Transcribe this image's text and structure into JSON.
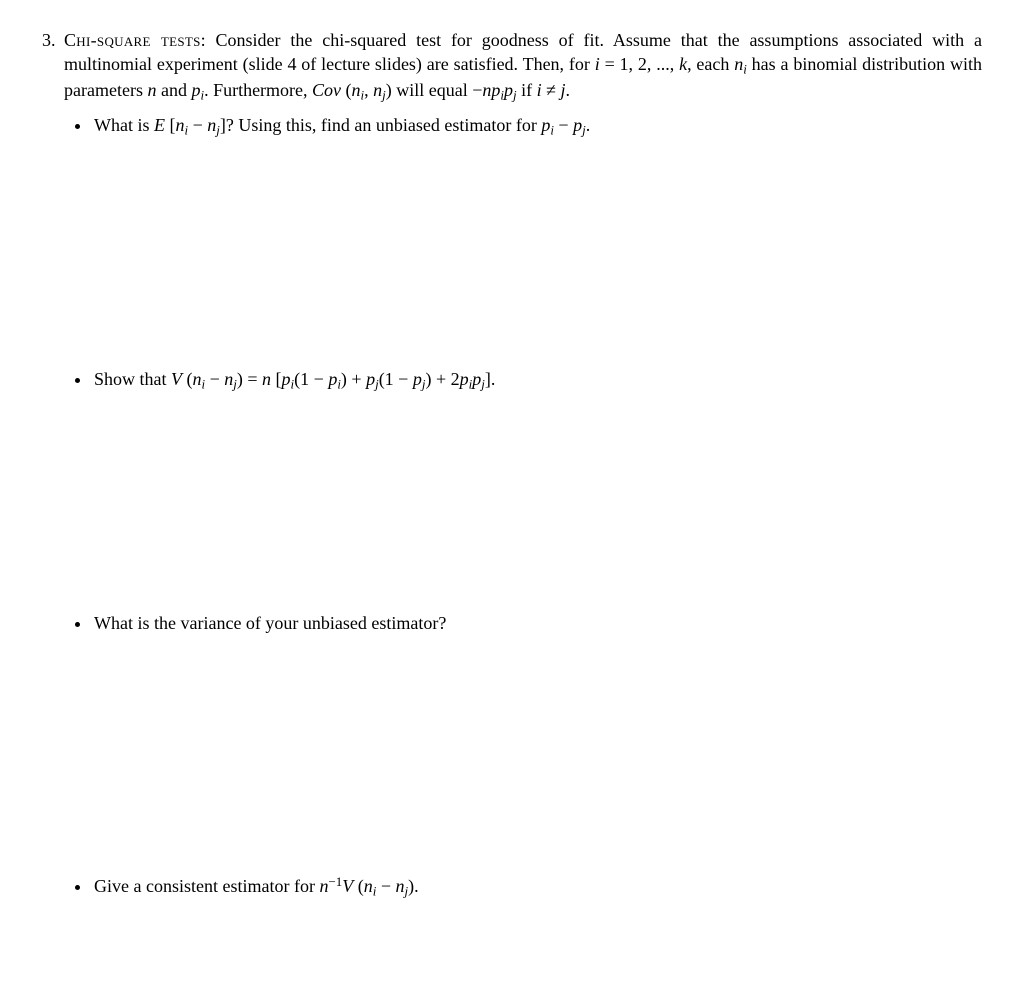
{
  "page": {
    "background_color": "#ffffff",
    "text_color": "#000000",
    "font_family": "Times New Roman",
    "base_fontsize_pt": 13
  },
  "problem": {
    "number": "3.",
    "title_smallcaps": "Chi-square tests",
    "title_suffix": ": ",
    "intro_html": "Consider the chi-squared test for goodness of fit. Assume that the assumptions associated with a multinomial experiment (slide 4 of lecture slides) are satisfied. Then, for <span class='math'>i</span> = 1, 2, ..., <span class='math'>k</span>, each <span class='math'>n<span class='sub'>i</span></span> has a binomial distribution with parameters <span class='math'>n</span> and <span class='math'>p<span class='sub'>i</span></span>. Furthermore, <span class='math'>Cov</span> (<span class='math'>n<span class='sub'>i</span></span>, <span class='math'>n<span class='sub'>j</span></span>) will equal −<span class='math'>np<span class='sub'>i</span>p<span class='sub'>j</span></span> if <span class='math'>i</span> ≠ <span class='math'>j</span>.",
    "bullets": [
      "What is <span class='math'>E</span> [<span class='math'>n<span class='sub'>i</span></span> − <span class='math'>n<span class='sub'>j</span></span>]? Using this, find an unbiased estimator for <span class='math'>p<span class='sub'>i</span></span> − <span class='math'>p<span class='sub'>j</span></span>.",
      "Show that <span class='math'>V</span> (<span class='math'>n<span class='sub'>i</span></span> − <span class='math'>n<span class='sub'>j</span></span>) = <span class='math'>n</span> [<span class='math'>p<span class='sub'>i</span></span>(1 − <span class='math'>p<span class='sub'>i</span></span>) + <span class='math'>p<span class='sub'>j</span></span>(1 − <span class='math'>p<span class='sub'>j</span></span>) + 2<span class='math'>p<span class='sub'>i</span>p<span class='sub'>j</span></span>].",
      "What is the variance of your unbiased estimator?",
      "Give a consistent estimator for <span class='math'>n</span><span class='sup'>−1</span><span class='math'>V</span> (<span class='math'>n<span class='sub'>i</span></span> − <span class='math'>n<span class='sub'>j</span></span>)."
    ]
  }
}
